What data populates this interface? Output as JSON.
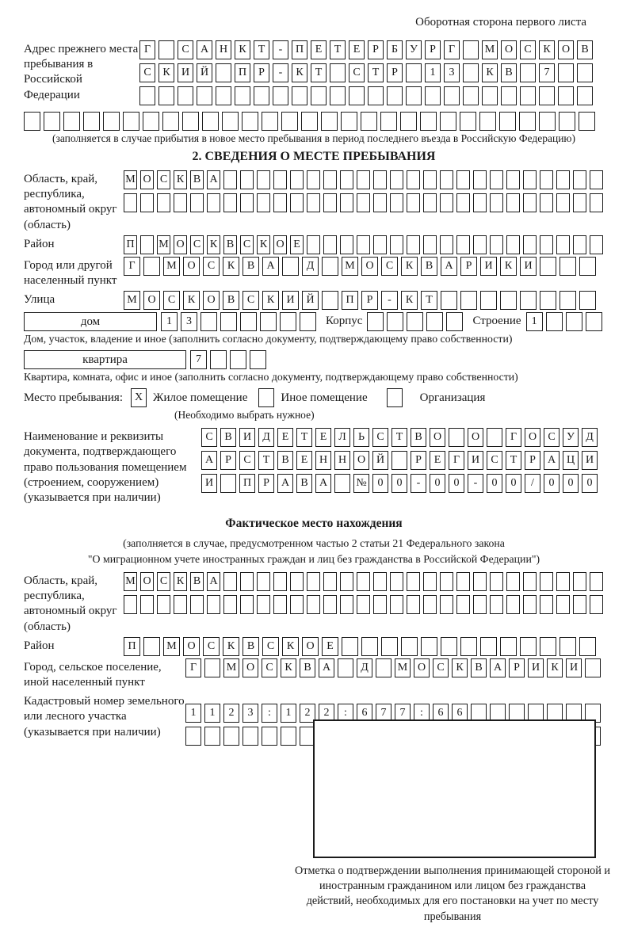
{
  "page_header": "Оборотная сторона первого листа",
  "prev_address": {
    "label": "Адрес прежнего места пребывания в Российской Федерации",
    "row1": {
      "chars": "Г САНКТ-ПЕТЕРБУРГ МОСКОВ",
      "len": 24
    },
    "row2": {
      "chars": "СКИЙ ПР-КТ СТР 13 КВ 7",
      "len": 24
    },
    "row3": {
      "chars": "",
      "len": 24
    },
    "row4": {
      "chars": "",
      "len": 29
    },
    "note": "(заполняется в случае прибытия в новое место пребывания в период последнего въезда в Российскую Федерацию)"
  },
  "section2": {
    "title": "2. СВЕДЕНИЯ О МЕСТЕ ПРЕБЫВАНИЯ",
    "region": {
      "label": "Область, край, республика, автономный округ (область)",
      "row1": {
        "chars": "МОСКВА",
        "len": 29
      },
      "row2": {
        "chars": "",
        "len": 29
      }
    },
    "district": {
      "label": "Район",
      "row": {
        "chars": "П МОСКВСКОЕ",
        "len": 29
      }
    },
    "city": {
      "label": "Город или другой населенный пункт",
      "row": {
        "chars": "Г МОСКВА Д МОСКВАРИКИ",
        "len": 24
      }
    },
    "street": {
      "label": "Улица",
      "row": {
        "chars": "МОСКОВСКИЙ ПР-КТ",
        "len": 24
      }
    },
    "house": {
      "box_label": "дом",
      "cells": {
        "chars": "13",
        "len": 8
      },
      "korpus_label": "Корпус",
      "korpus_cells": {
        "chars": "",
        "len": 5
      },
      "stroenie_label": "Строение",
      "stroenie_cells": {
        "chars": "1",
        "len": 4
      },
      "caption": "Дом, участок, владение и иное (заполнить согласно документу, подтверждающему право собственности)"
    },
    "apartment": {
      "box_label": "квартира",
      "cells": {
        "chars": "7",
        "len": 4
      },
      "caption": "Квартира, комната, офис и иное (заполнить согласно документу, подтверждающему право собственности)"
    },
    "stay_type": {
      "label": "Место пребывания:",
      "checked_value": "X",
      "options": [
        "Жилое помещение",
        "Иное помещение",
        "Организация"
      ],
      "note": "(Необходимо выбрать нужное)"
    },
    "document": {
      "label": "Наименование и реквизиты документа, подтверждающего право пользования помещением (строением, сооружением) (указывается при наличии)",
      "row1": {
        "chars": "СВИДЕТЕЛЬСТВО О ГОСУД",
        "len": 21
      },
      "row2": {
        "chars": "АРСТВЕННОЙ РЕГИСТРАЦИ",
        "len": 21
      },
      "row3": {
        "chars": "И ПРАВА №00-00-00/000",
        "len": 21
      }
    }
  },
  "actual_location": {
    "title": "Фактическое место нахождения",
    "note_line1": "(заполняется в случае, предусмотренном частью 2 статьи 21 Федерального закона",
    "note_line2": "\"О миграционном учете иностранных граждан и лиц без гражданства в Российской Федерации\")",
    "region": {
      "label": "Область, край, республика, автономный округ (область)",
      "row1": {
        "chars": "МОСКВА",
        "len": 29
      },
      "row2": {
        "chars": "",
        "len": 29
      }
    },
    "district": {
      "label": "Район",
      "row": {
        "chars": "П МОСКВСКОЕ",
        "len": 24
      }
    },
    "city": {
      "label": "Город, сельское поселение, иной населенный пункт",
      "row": {
        "chars": "Г МОСКВА Д МОСКВАРИКИ",
        "len": 22
      }
    },
    "cadastral": {
      "label": "Кадастровый номер земельного или лесного участка (указывается при наличии)",
      "row1": {
        "chars": "1123:122:677:66",
        "len": 22
      },
      "row2": {
        "chars": "",
        "len": 22
      }
    }
  },
  "stamp": {
    "caption": "Отметка о подтверждении выполнения принимающей стороной и иностранным гражданином или лицом без гражданства действий, необходимых для его постановки на учет по месту пребывания"
  }
}
